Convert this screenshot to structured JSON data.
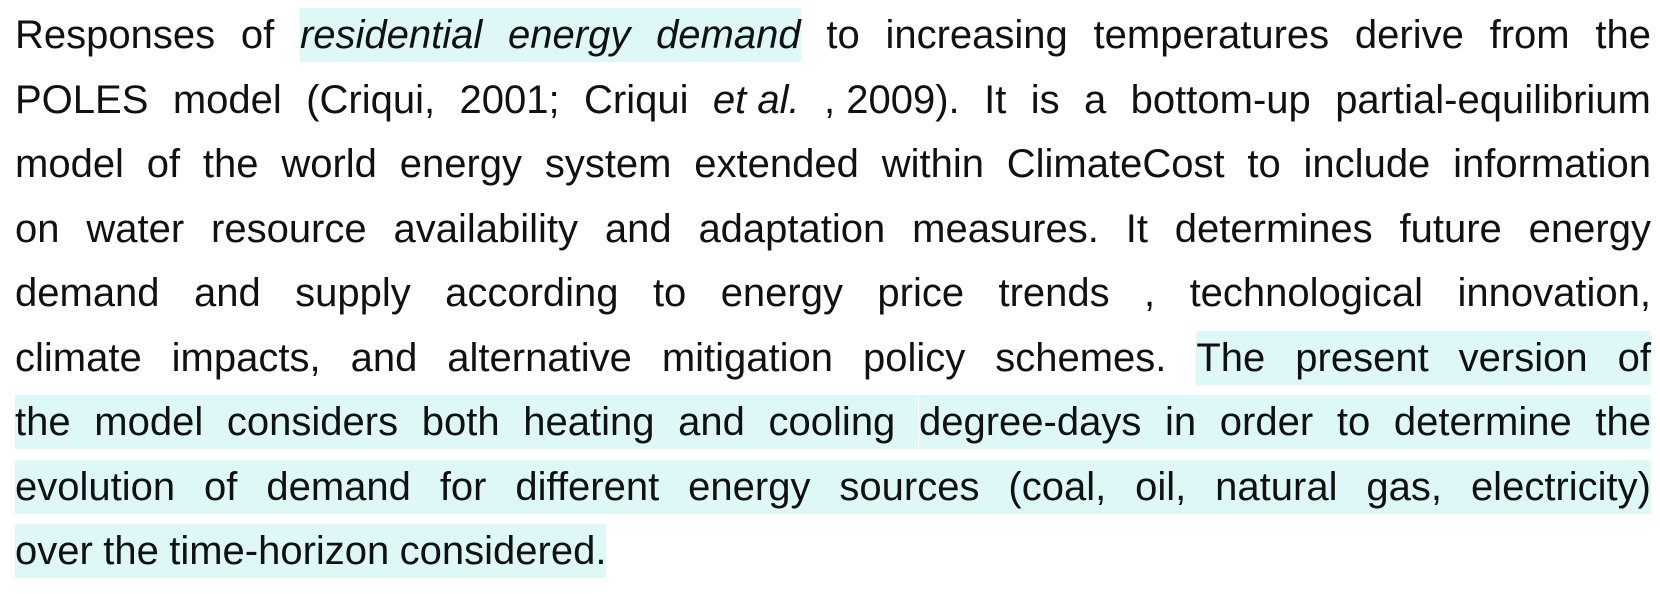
{
  "highlight_color": "#def8f7",
  "text_color": "#111111",
  "paragraph": {
    "lines": [
      {
        "justify": true,
        "words": [
          {
            "t": "Responses"
          },
          {
            "t": "of"
          },
          {
            "t": "residential",
            "i": true,
            "h": true
          },
          {
            "t": "energy",
            "i": true,
            "h": true
          },
          {
            "t": "demand",
            "i": true,
            "h": true
          },
          {
            "t": "to"
          },
          {
            "t": "increasing"
          },
          {
            "t": "temperatures"
          },
          {
            "t": "derive"
          },
          {
            "t": "from"
          },
          {
            "t": "the"
          }
        ]
      },
      {
        "justify": true,
        "words": [
          {
            "t": "POLES"
          },
          {
            "t": "model"
          },
          {
            "t": "(Criqui,"
          },
          {
            "t": "2001;"
          },
          {
            "t": "Criqui"
          },
          {
            "t": "et al.",
            "i": true
          },
          {
            "t": ", 2009)."
          },
          {
            "t": "It"
          },
          {
            "t": "is"
          },
          {
            "t": "a"
          },
          {
            "t": "bottom-up"
          },
          {
            "t": "partial-equilibrium"
          }
        ]
      },
      {
        "justify": true,
        "words": [
          {
            "t": "model"
          },
          {
            "t": "of"
          },
          {
            "t": "the"
          },
          {
            "t": "world"
          },
          {
            "t": "energy"
          },
          {
            "t": "system"
          },
          {
            "t": "extended"
          },
          {
            "t": "within"
          },
          {
            "t": "ClimateCost"
          },
          {
            "t": "to"
          },
          {
            "t": "include"
          },
          {
            "t": "information"
          }
        ]
      },
      {
        "justify": true,
        "words": [
          {
            "t": "on"
          },
          {
            "t": "water"
          },
          {
            "t": "resource"
          },
          {
            "t": "availability"
          },
          {
            "t": "and"
          },
          {
            "t": "adaptation"
          },
          {
            "t": "measures."
          },
          {
            "t": "It"
          },
          {
            "t": "determines"
          },
          {
            "t": "future"
          },
          {
            "t": "energy"
          }
        ]
      },
      {
        "justify": true,
        "words": [
          {
            "t": "demand"
          },
          {
            "t": "and"
          },
          {
            "t": "supply"
          },
          {
            "t": "according"
          },
          {
            "t": "to"
          },
          {
            "t": "energy"
          },
          {
            "t": "price"
          },
          {
            "t": "trends"
          },
          {
            "t": ","
          },
          {
            "t": "technological"
          },
          {
            "t": "innovation,"
          }
        ]
      },
      {
        "justify": true,
        "words": [
          {
            "t": "climate"
          },
          {
            "t": "impacts,"
          },
          {
            "t": "and"
          },
          {
            "t": "alternative"
          },
          {
            "t": "mitigation"
          },
          {
            "t": "policy"
          },
          {
            "t": "schemes."
          },
          {
            "t": "The",
            "h": true
          },
          {
            "t": "present",
            "h": true
          },
          {
            "t": "version",
            "h": true
          },
          {
            "t": "of",
            "h": true
          }
        ]
      },
      {
        "justify": true,
        "words": [
          {
            "t": "the",
            "h": true
          },
          {
            "t": "model",
            "h": true
          },
          {
            "t": "considers",
            "h": true
          },
          {
            "t": "both",
            "h": true
          },
          {
            "t": "heating",
            "h": true
          },
          {
            "t": "and",
            "h": true
          },
          {
            "t": "cooling",
            "h": true
          },
          {
            "t": "degree-days",
            "h": true
          },
          {
            "t": "in",
            "h": true
          },
          {
            "t": "order",
            "h": true
          },
          {
            "t": "to",
            "h": true
          },
          {
            "t": "determine",
            "h": true
          },
          {
            "t": "the",
            "h": true
          }
        ]
      },
      {
        "justify": true,
        "words": [
          {
            "t": "evolution",
            "h": true
          },
          {
            "t": "of",
            "h": true
          },
          {
            "t": "demand",
            "h": true
          },
          {
            "t": "for",
            "h": true
          },
          {
            "t": "different",
            "h": true
          },
          {
            "t": "energy",
            "h": true
          },
          {
            "t": "sources",
            "h": true
          },
          {
            "t": "(coal,",
            "h": true
          },
          {
            "t": "oil,",
            "h": true
          },
          {
            "t": "natural",
            "h": true
          },
          {
            "t": "gas,",
            "h": true
          },
          {
            "t": "electricity)",
            "h": true
          }
        ]
      },
      {
        "justify": false,
        "words": [
          {
            "t": "over",
            "h": true
          },
          {
            "t": "the",
            "h": true
          },
          {
            "t": "time-horizon",
            "h": true
          },
          {
            "t": "considered.",
            "h": true
          }
        ]
      }
    ]
  }
}
